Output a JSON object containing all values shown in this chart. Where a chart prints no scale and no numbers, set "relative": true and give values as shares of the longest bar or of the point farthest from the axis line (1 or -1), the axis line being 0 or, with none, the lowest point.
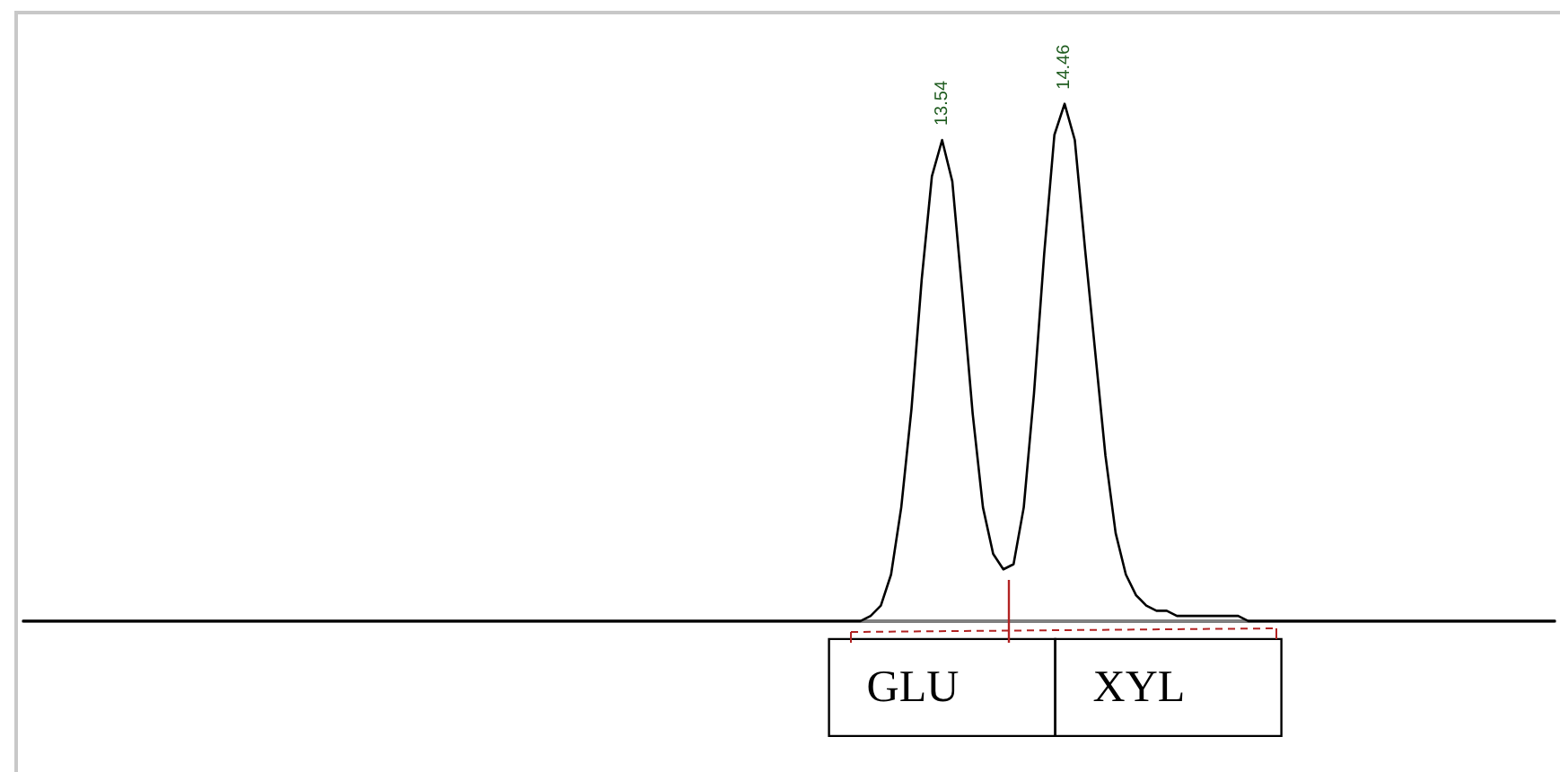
{
  "chart_data": {
    "type": "line",
    "relative": true,
    "grid": false,
    "annotations": [
      "13.54",
      "14.46",
      "GLU",
      "XYL"
    ],
    "categories": [
      null,
      null,
      null,
      null,
      null,
      null,
      null,
      null,
      null,
      null,
      null,
      null,
      null,
      null,
      null,
      null,
      null,
      null,
      null,
      null,
      null,
      null,
      null,
      null,
      null,
      null,
      null,
      null,
      null,
      null,
      null,
      null,
      null,
      null,
      null,
      null,
      null,
      null,
      null,
      null,
      null,
      null,
      null,
      null,
      null,
      null,
      null,
      null,
      null,
      null,
      null,
      null,
      null,
      null,
      null,
      null,
      null,
      null,
      null,
      null,
      null,
      null,
      null,
      null,
      null,
      null,
      null,
      null,
      null,
      null,
      null,
      null,
      null,
      null,
      null,
      null,
      null,
      null,
      null,
      null,
      null,
      null,
      null,
      null,
      null,
      null,
      null,
      null,
      null,
      null,
      null,
      null,
      null,
      null,
      null,
      null,
      null,
      null,
      null,
      null,
      null,
      null,
      null,
      null,
      null,
      null,
      null,
      null,
      null,
      null,
      null,
      null,
      null,
      null,
      null,
      null,
      null,
      null,
      null,
      null,
      null,
      null,
      null,
      null,
      null,
      null,
      null,
      null,
      null,
      null,
      null,
      null,
      null,
      null,
      null,
      null,
      null,
      null,
      null,
      null,
      null,
      null,
      null,
      null,
      null,
      null,
      null,
      null,
      null,
      null,
      null
    ],
    "series": [
      {
        "color": "#000000",
        "line_style": "solid",
        "values": [
          0,
          0,
          0,
          0,
          0,
          0,
          0,
          0,
          0,
          0,
          0,
          0,
          0,
          0,
          0,
          0,
          0,
          0,
          0,
          0,
          0,
          0,
          0,
          0,
          0,
          0,
          0,
          0,
          0,
          0,
          0,
          0,
          0,
          0,
          0,
          0,
          0,
          0,
          0,
          0,
          0,
          0,
          0,
          0,
          0,
          0,
          0,
          0,
          0,
          0,
          0,
          0,
          0,
          0,
          0,
          0,
          0,
          0,
          0,
          0,
          0,
          0,
          0,
          0,
          0,
          0,
          0,
          0,
          0,
          0,
          0,
          0,
          0,
          0,
          0,
          0,
          0,
          0,
          0,
          0,
          0,
          0,
          0,
          0.01,
          0.03,
          0.09,
          0.22,
          0.41,
          0.66,
          0.86,
          0.93,
          0.85,
          0.63,
          0.4,
          0.22,
          0.13,
          0.1,
          0.11,
          0.22,
          0.44,
          0.71,
          0.94,
          1,
          0.93,
          0.72,
          0.52,
          0.32,
          0.17,
          0.09,
          0.05,
          0.03,
          0.02,
          0.02,
          0.01,
          0.01,
          0.01,
          0.01,
          0.01,
          0.01,
          0.01,
          0,
          0,
          0,
          0,
          0,
          0,
          0,
          0,
          0,
          0,
          0,
          0,
          0,
          0,
          0,
          0,
          0,
          0,
          0,
          0,
          0,
          0,
          0,
          0,
          0,
          0,
          0,
          0,
          0,
          0,
          0
        ]
      }
    ]
  }
}
